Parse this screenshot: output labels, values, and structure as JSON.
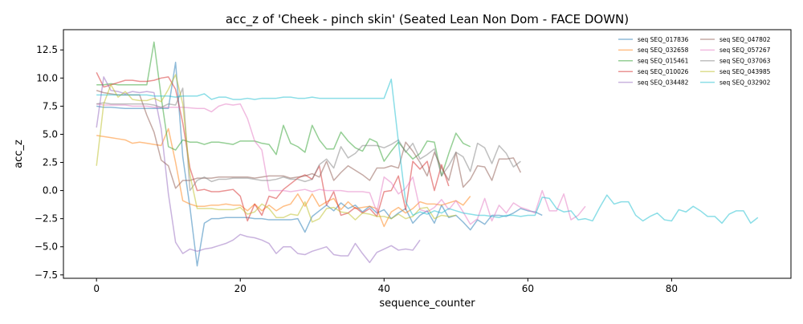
{
  "chart_data": {
    "type": "line",
    "title": "acc_z of 'Cheek - pinch skin' (Seated Lean Non Dom - FACE DOWN)",
    "xlabel": "sequence_counter",
    "ylabel": "acc_z",
    "xlim": [
      -4.6,
      96.6
    ],
    "ylim": [
      -7.8,
      14.3
    ],
    "xticks": [
      0,
      20,
      40,
      60,
      80
    ],
    "yticks": [
      -7.5,
      -5.0,
      -2.5,
      0.0,
      2.5,
      5.0,
      7.5,
      10.0,
      12.5
    ],
    "ytick_labels": [
      "−7.5",
      "−5.0",
      "−2.5",
      "0.0",
      "2.5",
      "5.0",
      "7.5",
      "10.0",
      "12.5"
    ],
    "grid": false,
    "legend_position": "top-right",
    "legend_columns": 2,
    "series": [
      {
        "name": "seq SEQ_017836",
        "color": "#1f77b4",
        "values": [
          7.5,
          7.4,
          7.4,
          7.35,
          7.3,
          7.3,
          7.3,
          7.3,
          7.3,
          7.3,
          7.3,
          11.4,
          3.0,
          -1.5,
          -6.7,
          -2.9,
          -2.5,
          -2.5,
          -2.4,
          -2.4,
          -2.4,
          -2.4,
          -2.5,
          -2.5,
          -2.6,
          -2.6,
          -2.6,
          -2.6,
          -2.5,
          -3.7,
          -2.3,
          -1.8,
          -1.3,
          -1.8,
          -1.1,
          -1.6,
          -1.3,
          -1.9,
          -1.4,
          -2.0,
          -1.7,
          -2.5,
          -2.0,
          -1.6,
          -2.9,
          -2.2,
          -1.8,
          -2.9,
          -1.3,
          -2.4,
          -2.2,
          -2.8,
          -3.5,
          -2.6,
          -3.0,
          -2.2,
          -2.2,
          -2.3,
          -2.0,
          -1.6,
          -1.8,
          -1.9,
          -2.2
        ]
      },
      {
        "name": "seq SEQ_032658",
        "color": "#ff7f0e",
        "values": [
          4.9,
          4.8,
          4.7,
          4.6,
          4.5,
          4.2,
          4.3,
          4.2,
          4.1,
          4.0,
          5.5,
          2.5,
          -0.9,
          -1.2,
          -1.4,
          -1.4,
          -1.3,
          -1.3,
          -1.2,
          -1.3,
          -1.3,
          -1.8,
          -1.2,
          -1.8,
          -1.3,
          -1.8,
          -1.4,
          -1.2,
          -0.3,
          -1.4,
          -0.3,
          -1.4,
          -1.0,
          -0.7,
          -1.7,
          -1.0,
          -1.6,
          -1.5,
          -1.4,
          -1.6,
          -3.2,
          -1.9,
          -1.5,
          -2.0,
          -1.6,
          -1.0,
          -1.2,
          -1.2,
          -1.3,
          -1.1,
          -0.9,
          -1.3,
          -0.5
        ]
      },
      {
        "name": "seq SEQ_015461",
        "color": "#2ca02c",
        "values": [
          9.4,
          9.4,
          9.5,
          9.4,
          9.4,
          9.4,
          9.4,
          9.4,
          13.2,
          8.3,
          3.9,
          3.6,
          4.5,
          4.3,
          4.3,
          4.1,
          4.3,
          4.3,
          4.2,
          4.1,
          4.4,
          4.4,
          4.4,
          4.2,
          4.1,
          3.2,
          5.8,
          4.2,
          3.9,
          3.4,
          5.8,
          4.5,
          3.7,
          3.7,
          5.2,
          4.4,
          3.8,
          3.5,
          4.6,
          4.3,
          2.6,
          3.5,
          4.3,
          3.5,
          2.8,
          3.3,
          4.4,
          4.3,
          1.3,
          3.3,
          5.1,
          4.2,
          3.9
        ]
      },
      {
        "name": "seq SEQ_010026",
        "color": "#d62728",
        "values": [
          10.5,
          9.2,
          9.4,
          9.6,
          9.8,
          9.8,
          9.7,
          9.7,
          9.8,
          10.0,
          10.1,
          9.0,
          6.0,
          2.0,
          0.0,
          0.1,
          -0.1,
          -0.1,
          0.0,
          0.1,
          -0.5,
          -2.7,
          -1.2,
          -2.2,
          -0.5,
          -0.7,
          0.1,
          0.6,
          1.1,
          1.4,
          1.0,
          2.2,
          -1.3,
          -0.1,
          -2.2,
          -2.0,
          -1.5,
          -2.0,
          -1.6,
          -2.3,
          -0.1,
          0.0,
          1.3,
          -1.7,
          2.6,
          1.9,
          2.6,
          0.0,
          2.3,
          0.4
        ]
      },
      {
        "name": "seq SEQ_034482",
        "color": "#9467bd",
        "values": [
          5.6,
          10.1,
          8.9,
          8.8,
          8.6,
          8.8,
          8.7,
          8.8,
          8.7,
          5.5,
          -0.3,
          -4.6,
          -5.6,
          -5.2,
          -5.4,
          -5.2,
          -5.1,
          -4.9,
          -4.7,
          -4.4,
          -3.9,
          -4.1,
          -4.2,
          -4.4,
          -4.7,
          -5.6,
          -5.0,
          -5.0,
          -5.6,
          -5.7,
          -5.4,
          -5.2,
          -5.0,
          -5.7,
          -5.8,
          -5.8,
          -4.7,
          -5.6,
          -6.4,
          -5.5,
          -5.2,
          -4.9,
          -5.3,
          -5.2,
          -5.3,
          -4.4
        ]
      },
      {
        "name": "seq SEQ_047802",
        "color": "#8c564b",
        "values": [
          8.9,
          8.7,
          8.6,
          8.5,
          8.5,
          8.5,
          8.5,
          6.7,
          5.2,
          2.7,
          2.2,
          0.2,
          0.9,
          0.9,
          1.1,
          1.1,
          1.1,
          1.2,
          1.2,
          1.2,
          1.2,
          1.2,
          1.1,
          1.2,
          1.3,
          1.3,
          1.3,
          1.1,
          1.2,
          1.3,
          1.5,
          1.2,
          2.6,
          0.9,
          1.6,
          2.2,
          1.8,
          1.4,
          0.9,
          2.0,
          2.0,
          2.2,
          2.0,
          4.3,
          3.5,
          2.5,
          1.3,
          3.4,
          2.0,
          0.9,
          3.4,
          0.3,
          1.0,
          2.2,
          2.1,
          0.9,
          2.8,
          2.8,
          2.9,
          1.6
        ]
      },
      {
        "name": "seq SEQ_057267",
        "color": "#e377c2",
        "values": [
          7.7,
          7.6,
          7.6,
          7.6,
          7.6,
          7.5,
          7.5,
          7.5,
          7.4,
          7.4,
          7.4,
          7.4,
          7.4,
          7.35,
          7.3,
          7.3,
          7.0,
          7.5,
          7.7,
          7.6,
          7.7,
          6.4,
          4.4,
          3.6,
          0.0,
          0.0,
          0.0,
          -0.1,
          0.0,
          0.1,
          -0.1,
          0.1,
          0.0,
          0.0,
          0.0,
          -0.1,
          -0.1,
          -0.1,
          -0.2,
          -1.9,
          1.2,
          0.7,
          -0.3,
          0.2,
          1.2,
          -1.7,
          -1.9,
          -1.5,
          -0.8,
          -1.7,
          -0.9,
          -1.9,
          -3.0,
          -2.5,
          -0.7,
          -2.7,
          -1.3,
          -2.0,
          -1.1,
          -1.5,
          -1.7,
          -2.0,
          0.0,
          -1.8,
          -1.8,
          -0.3,
          -2.6,
          -2.2,
          -1.4
        ]
      },
      {
        "name": "seq SEQ_037063",
        "color": "#7f7f7f",
        "values": [
          7.7,
          7.8,
          7.7,
          7.7,
          7.7,
          7.7,
          7.7,
          7.7,
          7.6,
          7.4,
          7.7,
          7.6,
          9.1,
          0.0,
          0.9,
          1.2,
          0.8,
          1.0,
          1.0,
          1.1,
          1.1,
          1.1,
          1.0,
          0.9,
          0.9,
          1.0,
          1.2,
          1.0,
          1.0,
          0.8,
          1.0,
          2.3,
          2.8,
          2.0,
          3.9,
          2.9,
          3.3,
          4.0,
          4.0,
          4.0,
          3.8,
          4.1,
          4.5,
          3.4,
          4.2,
          2.8,
          3.2,
          3.7,
          1.3,
          2.2,
          3.4,
          3.0,
          1.7,
          4.2,
          3.8,
          2.4,
          4.0,
          3.3,
          2.1,
          2.6
        ]
      },
      {
        "name": "seq SEQ_043985",
        "color": "#bcbd22",
        "values": [
          2.2,
          7.7,
          9.4,
          8.3,
          8.8,
          8.1,
          8.0,
          8.0,
          8.2,
          7.9,
          9.0,
          10.3,
          7.7,
          1.4,
          -1.6,
          -1.6,
          -1.6,
          -1.7,
          -1.7,
          -1.7,
          -1.5,
          -2.1,
          -1.9,
          -1.2,
          -1.6,
          -2.4,
          -2.4,
          -2.1,
          -2.2,
          -1.0,
          -2.8,
          -2.5,
          -1.6,
          -1.5,
          -1.9,
          -2.0,
          -2.6,
          -2.0,
          -2.1,
          -2.3,
          -2.3,
          -2.5,
          -2.1,
          -2.5,
          -2.3,
          -1.6,
          -1.5,
          -2.5,
          -2.2,
          -2.3,
          -2.2
        ]
      },
      {
        "name": "seq SEQ_032902",
        "color": "#17becf",
        "values": [
          8.5,
          8.5,
          8.5,
          8.5,
          8.5,
          8.5,
          8.5,
          8.5,
          8.4,
          8.4,
          8.4,
          8.3,
          8.4,
          8.4,
          8.4,
          8.6,
          8.1,
          8.3,
          8.3,
          8.1,
          8.1,
          8.2,
          8.1,
          8.2,
          8.2,
          8.2,
          8.3,
          8.3,
          8.2,
          8.2,
          8.3,
          8.2,
          8.2,
          8.2,
          8.2,
          8.2,
          8.2,
          8.2,
          8.2,
          8.2,
          8.2,
          9.9,
          4.3,
          -1.0,
          -2.2,
          -1.9,
          -2.1,
          -1.8,
          -2.0,
          -1.6,
          -1.8,
          -2.0,
          -2.1,
          -2.2,
          -2.2,
          -2.3,
          -2.4,
          -2.2,
          -2.2,
          -2.3,
          -2.2,
          -2.2,
          -0.6,
          -0.7,
          -1.6,
          -1.9,
          -1.8,
          -2.6,
          -2.5,
          -2.7,
          -1.5,
          -0.4,
          -1.2,
          -1.0,
          -1.0,
          -2.2,
          -2.7,
          -2.3,
          -2.0,
          -2.6,
          -2.7,
          -1.7,
          -1.9,
          -1.4,
          -1.8,
          -2.3,
          -2.3,
          -2.9,
          -2.1,
          -1.8,
          -1.8,
          -2.9,
          -2.4
        ]
      }
    ]
  }
}
